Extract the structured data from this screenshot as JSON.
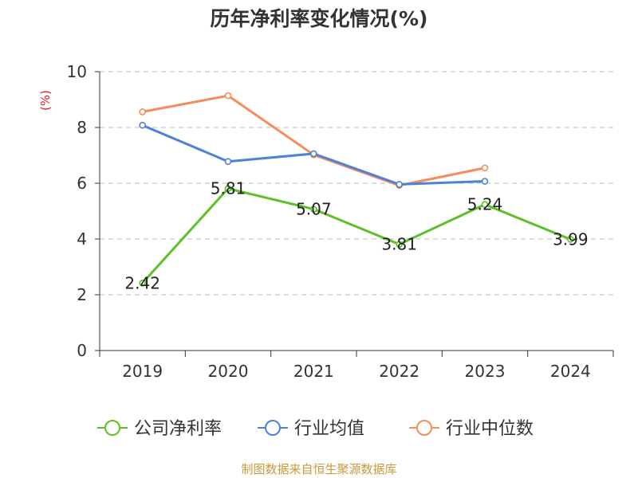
{
  "chart_data": {
    "type": "line",
    "title": "历年净利率变化情况(%)",
    "ylabel": "(%)",
    "categories": [
      "2019",
      "2020",
      "2021",
      "2022",
      "2023",
      "2024"
    ],
    "ylim": [
      0,
      10
    ],
    "yticks": [
      0,
      2,
      4,
      6,
      8,
      10
    ],
    "grid": true,
    "legend_position": "bottom",
    "series": [
      {
        "name": "公司净利率",
        "color": "#5cc026",
        "values": [
          2.42,
          5.81,
          5.07,
          3.81,
          5.24,
          3.99
        ],
        "labels": [
          "2.42",
          "5.81",
          "5.07",
          "3.81",
          "5.24",
          "3.99"
        ]
      },
      {
        "name": "行业均值",
        "color": "#4f81d6",
        "values": [
          8.08,
          6.78,
          7.06,
          5.96,
          6.07,
          null
        ]
      },
      {
        "name": "行业中位数",
        "color": "#f48d5b",
        "values": [
          8.56,
          9.14,
          7.02,
          5.92,
          6.55,
          null
        ]
      }
    ]
  },
  "source": "制图数据来自恒生聚源数据库"
}
